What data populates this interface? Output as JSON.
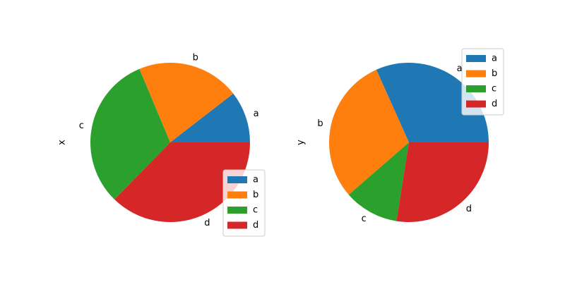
{
  "chart_data": [
    {
      "type": "pie",
      "ylabel": "x",
      "categories": [
        "a",
        "b",
        "c",
        "d"
      ],
      "values": [
        10.5,
        20.8,
        31.4,
        37.3
      ],
      "colors": [
        "#1f77b4",
        "#ff7f0e",
        "#2ca02c",
        "#d62728"
      ],
      "legend": "lower right"
    },
    {
      "type": "pie",
      "ylabel": "y",
      "categories": [
        "a",
        "b",
        "c",
        "d"
      ],
      "values": [
        31.7,
        29.7,
        11.1,
        27.5
      ],
      "colors": [
        "#1f77b4",
        "#ff7f0e",
        "#2ca02c",
        "#d62728"
      ],
      "legend": "upper right"
    }
  ]
}
